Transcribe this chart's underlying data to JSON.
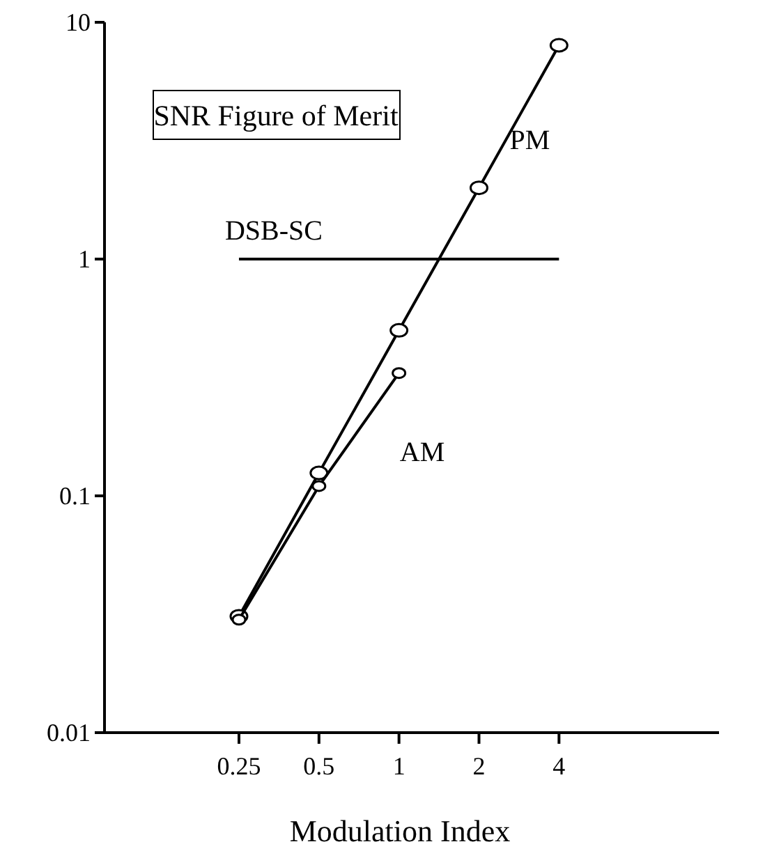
{
  "chart_data": {
    "type": "line",
    "title": "SNR Figure of Merit",
    "xlabel": "Modulation Index",
    "log": "xy",
    "xlim": [
      0.078,
      16
    ],
    "xticks": [
      0.25,
      0.5,
      1,
      2,
      4
    ],
    "ylim": [
      0.01,
      10
    ],
    "yticks": [
      0.01,
      0.1,
      1,
      10
    ],
    "grid": false,
    "series": [
      {
        "name": "PM",
        "color": "#000000",
        "marker": "circle",
        "x": [
          0.25,
          0.5,
          1,
          2,
          4
        ],
        "values": [
          0.031,
          0.125,
          0.5,
          2,
          8
        ]
      },
      {
        "name": "AM",
        "color": "#000000",
        "marker": "circle",
        "x": [
          0.25,
          0.5,
          1
        ],
        "values": [
          0.03,
          0.11,
          0.33
        ]
      },
      {
        "name": "DSB-SC",
        "color": "#000000",
        "marker": "none",
        "x": [
          0.25,
          4
        ],
        "values": [
          1,
          1
        ]
      }
    ]
  }
}
